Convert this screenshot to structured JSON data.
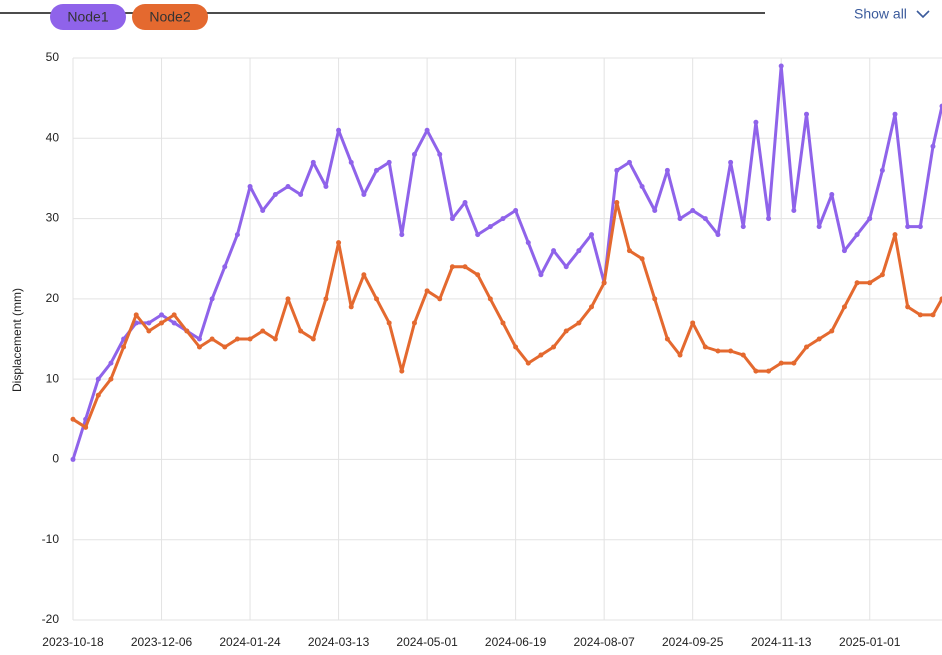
{
  "chart_data": {
    "type": "line",
    "y_label": "Displacement (mm)",
    "show_all": "Show all",
    "x": [
      "2023-10-18",
      "2023-10-25",
      "2023-11-01",
      "2023-11-08",
      "2023-11-15",
      "2023-11-22",
      "2023-11-29",
      "2023-12-06",
      "2023-12-13",
      "2023-12-20",
      "2023-12-27",
      "2024-01-03",
      "2024-01-10",
      "2024-01-17",
      "2024-01-24",
      "2024-01-31",
      "2024-02-07",
      "2024-02-14",
      "2024-02-21",
      "2024-02-28",
      "2024-03-06",
      "2024-03-13",
      "2024-03-20",
      "2024-03-27",
      "2024-04-03",
      "2024-04-10",
      "2024-04-17",
      "2024-04-24",
      "2024-05-01",
      "2024-05-08",
      "2024-05-15",
      "2024-05-22",
      "2024-05-29",
      "2024-06-05",
      "2024-06-12",
      "2024-06-19",
      "2024-06-26",
      "2024-07-03",
      "2024-07-10",
      "2024-07-17",
      "2024-07-24",
      "2024-07-31",
      "2024-08-07",
      "2024-08-14",
      "2024-08-21",
      "2024-08-28",
      "2024-09-04",
      "2024-09-11",
      "2024-09-18",
      "2024-09-25",
      "2024-10-02",
      "2024-10-09",
      "2024-10-16",
      "2024-10-23",
      "2024-10-30",
      "2024-11-06",
      "2024-11-13",
      "2024-11-20",
      "2024-11-27",
      "2024-12-04",
      "2024-12-11",
      "2024-12-18",
      "2024-12-25",
      "2025-01-01",
      "2025-01-08",
      "2025-01-15",
      "2025-01-22",
      "2025-01-29",
      "2025-02-05",
      "2025-02-10"
    ],
    "series": [
      {
        "name": "Node1",
        "color": "#8f63ea",
        "values": [
          0,
          5,
          10,
          12,
          15,
          17,
          17,
          18,
          17,
          16,
          15,
          20,
          24,
          28,
          34,
          31,
          33,
          34,
          33,
          37,
          34,
          41,
          37,
          33,
          36,
          37,
          28,
          38,
          41,
          38,
          30,
          32,
          28,
          29,
          30,
          31,
          27,
          23,
          26,
          24,
          26,
          28,
          22,
          36,
          37,
          34,
          31,
          36,
          30,
          31,
          30,
          28,
          37,
          29,
          42,
          30,
          49,
          31,
          43,
          29,
          33,
          26,
          28,
          30,
          36,
          43,
          29,
          29,
          39,
          44
        ]
      },
      {
        "name": "Node2",
        "color": "#e4692f",
        "values": [
          5,
          4,
          8,
          10,
          14,
          18,
          16,
          17,
          18,
          16,
          14,
          15,
          14,
          15,
          15,
          16,
          15,
          20,
          16,
          15,
          20,
          27,
          19,
          23,
          20,
          17,
          11,
          17,
          21,
          20,
          24,
          24,
          23,
          20,
          17,
          14,
          12,
          13,
          14,
          16,
          17,
          19,
          22,
          32,
          26,
          25,
          20,
          15,
          13,
          17,
          14,
          13.5,
          13.5,
          13,
          11,
          11,
          12,
          12,
          14,
          15,
          16,
          19,
          22,
          22,
          23,
          28,
          19,
          18,
          18,
          20
        ]
      }
    ],
    "xlim": [
      "2023-10-18",
      "2025-02-10"
    ],
    "xticks": [
      "2023-10-18",
      "2023-12-06",
      "2024-01-24",
      "2024-03-13",
      "2024-05-01",
      "2024-06-19",
      "2024-08-07",
      "2024-09-25",
      "2024-11-13",
      "2025-01-01"
    ],
    "ylim": [
      -20,
      50
    ],
    "yticks": [
      -20,
      -10,
      0,
      10,
      20,
      30,
      40,
      50
    ],
    "grid": true
  }
}
